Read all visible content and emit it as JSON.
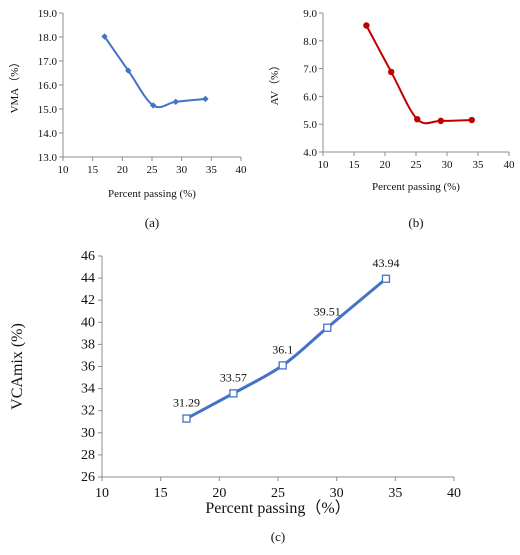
{
  "chart_data": [
    {
      "id": "a",
      "type": "line",
      "panel_label": "(a)",
      "xlabel": "Percent passing (%)",
      "ylabel": "VMA（%）",
      "xlim": [
        10,
        40
      ],
      "ylim": [
        13.0,
        19.0
      ],
      "xticks": [
        "10",
        "15",
        "20",
        "25",
        "30",
        "35",
        "40"
      ],
      "yticks": [
        "13.0",
        "14.0",
        "15.0",
        "16.0",
        "17.0",
        "18.0",
        "19.0"
      ],
      "grid": false,
      "color": "#4472C4",
      "marker": "diamond",
      "smooth": true,
      "x": [
        17,
        21,
        25.2,
        29,
        34
      ],
      "y": [
        18.02,
        16.6,
        15.15,
        15.3,
        15.42
      ]
    },
    {
      "id": "b",
      "type": "line",
      "panel_label": "(b)",
      "xlabel": "Percent passing (%)",
      "ylabel": "AV（%）",
      "xlim": [
        10,
        40
      ],
      "ylim": [
        4.0,
        9.0
      ],
      "xticks": [
        "10",
        "15",
        "20",
        "25",
        "30",
        "35",
        "40"
      ],
      "yticks": [
        "4.0",
        "5.0",
        "6.0",
        "7.0",
        "8.0",
        "9.0"
      ],
      "grid": false,
      "color": "#C00000",
      "marker": "circle",
      "smooth": true,
      "x": [
        17,
        21,
        25.2,
        29,
        34
      ],
      "y": [
        8.55,
        6.88,
        5.18,
        5.12,
        5.15
      ]
    },
    {
      "id": "c",
      "type": "line",
      "panel_label": "(c)",
      "xlabel": "Percent passing（%）",
      "ylabel": "VCAmix (%)",
      "xlim": [
        10,
        40
      ],
      "ylim": [
        26,
        46
      ],
      "xticks": [
        "10",
        "15",
        "20",
        "25",
        "30",
        "35",
        "40"
      ],
      "yticks": [
        "26",
        "28",
        "30",
        "32",
        "34",
        "36",
        "38",
        "40",
        "42",
        "44",
        "46"
      ],
      "grid": false,
      "color": "#4472C4",
      "marker": "square-open",
      "smooth": true,
      "x": [
        17.2,
        21.2,
        25.4,
        29.2,
        34.2
      ],
      "y": [
        31.29,
        33.57,
        36.1,
        39.51,
        43.94
      ],
      "data_labels": [
        "31.29",
        "33.57",
        "36.1",
        "39.51",
        "43.94"
      ]
    }
  ]
}
